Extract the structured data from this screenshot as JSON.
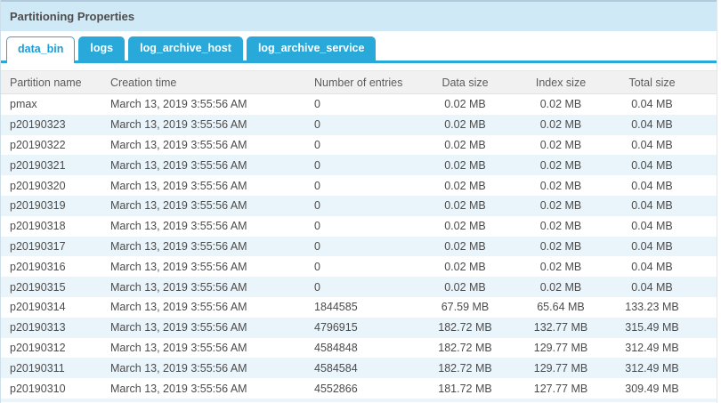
{
  "panel": {
    "title": "Partitioning Properties"
  },
  "colors": {
    "accent_blue": "#29a9d9",
    "active_tab_text": "#1a9cd8",
    "title_bar_bg": "#cfe9f6",
    "stripe_bg": "#e9f5fb",
    "header_bg": "#f1f1f1"
  },
  "tabs": [
    {
      "label": "data_bin",
      "active": true
    },
    {
      "label": "logs",
      "active": false
    },
    {
      "label": "log_archive_host",
      "active": false
    },
    {
      "label": "log_archive_service",
      "active": false
    }
  ],
  "table": {
    "columns": [
      "Partition name",
      "Creation time",
      "Number of entries",
      "Data size",
      "Index size",
      "Total size"
    ],
    "rows": [
      [
        "pmax",
        "March 13, 2019 3:55:56 AM",
        "0",
        "0.02 MB",
        "0.02 MB",
        "0.04 MB"
      ],
      [
        "p20190323",
        "March 13, 2019 3:55:56 AM",
        "0",
        "0.02 MB",
        "0.02 MB",
        "0.04 MB"
      ],
      [
        "p20190322",
        "March 13, 2019 3:55:56 AM",
        "0",
        "0.02 MB",
        "0.02 MB",
        "0.04 MB"
      ],
      [
        "p20190321",
        "March 13, 2019 3:55:56 AM",
        "0",
        "0.02 MB",
        "0.02 MB",
        "0.04 MB"
      ],
      [
        "p20190320",
        "March 13, 2019 3:55:56 AM",
        "0",
        "0.02 MB",
        "0.02 MB",
        "0.04 MB"
      ],
      [
        "p20190319",
        "March 13, 2019 3:55:56 AM",
        "0",
        "0.02 MB",
        "0.02 MB",
        "0.04 MB"
      ],
      [
        "p20190318",
        "March 13, 2019 3:55:56 AM",
        "0",
        "0.02 MB",
        "0.02 MB",
        "0.04 MB"
      ],
      [
        "p20190317",
        "March 13, 2019 3:55:56 AM",
        "0",
        "0.02 MB",
        "0.02 MB",
        "0.04 MB"
      ],
      [
        "p20190316",
        "March 13, 2019 3:55:56 AM",
        "0",
        "0.02 MB",
        "0.02 MB",
        "0.04 MB"
      ],
      [
        "p20190315",
        "March 13, 2019 3:55:56 AM",
        "0",
        "0.02 MB",
        "0.02 MB",
        "0.04 MB"
      ],
      [
        "p20190314",
        "March 13, 2019 3:55:56 AM",
        "1844585",
        "67.59 MB",
        "65.64 MB",
        "133.23 MB"
      ],
      [
        "p20190313",
        "March 13, 2019 3:55:56 AM",
        "4796915",
        "182.72 MB",
        "132.77 MB",
        "315.49 MB"
      ],
      [
        "p20190312",
        "March 13, 2019 3:55:56 AM",
        "4584848",
        "182.72 MB",
        "129.77 MB",
        "312.49 MB"
      ],
      [
        "p20190311",
        "March 13, 2019 3:55:56 AM",
        "4584584",
        "182.72 MB",
        "129.77 MB",
        "312.49 MB"
      ],
      [
        "p20190310",
        "March 13, 2019 3:55:56 AM",
        "4552866",
        "181.72 MB",
        "127.77 MB",
        "309.49 MB"
      ]
    ]
  }
}
